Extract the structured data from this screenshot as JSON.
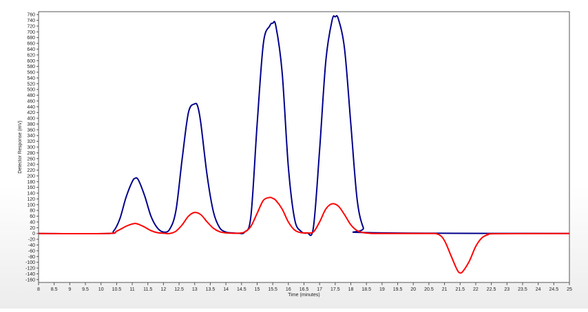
{
  "chart_data": {
    "type": "line",
    "title": "",
    "xlabel": "Time (minutes)",
    "ylabel": "Detector Response (mV)",
    "xlim": [
      8,
      25
    ],
    "ylim": [
      -170,
      770
    ],
    "x_ticks": [
      "8",
      "8.5",
      "9",
      "9.5",
      "10",
      "10.5",
      "11",
      "11.5",
      "12",
      "12.5",
      "13",
      "13.5",
      "14",
      "14.5",
      "15",
      "15.5",
      "16",
      "16.5",
      "17",
      "17.5",
      "18",
      "18.5",
      "19",
      "19.5",
      "20",
      "20.5",
      "21",
      "21.5",
      "22",
      "22.5",
      "23",
      "23.5",
      "24",
      "24.5",
      "25"
    ],
    "y_ticks": [
      "760",
      "740",
      "720",
      "700",
      "680",
      "660",
      "640",
      "620",
      "600",
      "580",
      "560",
      "540",
      "520",
      "500",
      "480",
      "460",
      "440",
      "420",
      "400",
      "380",
      "360",
      "340",
      "320",
      "300",
      "280",
      "260",
      "240",
      "220",
      "200",
      "180",
      "160",
      "140",
      "120",
      "100",
      "80",
      "60",
      "40",
      "20",
      "0",
      "-20",
      "-40",
      "-60",
      "-80",
      "-100",
      "-120",
      "-140",
      "-160"
    ],
    "grid": false,
    "legend": "none",
    "series": [
      {
        "color": "#00008b",
        "x": [
          8,
          10.2,
          10.4,
          10.6,
          10.8,
          11,
          11.1,
          11.2,
          11.4,
          11.6,
          11.8,
          12,
          12.2,
          12.4,
          12.6,
          12.8,
          13,
          13.1,
          13.2,
          13.4,
          13.6,
          13.8,
          14,
          14.2,
          14.4,
          14.6,
          14.8,
          15,
          15.2,
          15.4,
          15.5,
          15.6,
          15.8,
          16,
          16.2,
          16.4,
          16.6,
          16.8,
          17,
          17.2,
          17.4,
          17.5,
          17.6,
          17.8,
          18,
          18.2,
          18.4,
          18.6,
          25
        ],
        "y": [
          0,
          0,
          8,
          50,
          125,
          180,
          192,
          185,
          130,
          60,
          20,
          5,
          15,
          80,
          260,
          420,
          450,
          440,
          380,
          200,
          75,
          20,
          5,
          2,
          1,
          5,
          60,
          380,
          660,
          720,
          730,
          720,
          560,
          230,
          50,
          8,
          2,
          20,
          290,
          600,
          740,
          752,
          745,
          640,
          380,
          120,
          20,
          3,
          0
        ]
      },
      {
        "color": "#ff0000",
        "x": [
          8,
          10.2,
          10.5,
          10.8,
          11,
          11.1,
          11.2,
          11.4,
          11.6,
          11.8,
          12,
          12.2,
          12.4,
          12.6,
          12.8,
          13,
          13.2,
          13.4,
          13.6,
          13.8,
          14,
          14.2,
          14.4,
          14.6,
          14.8,
          15,
          15.2,
          15.4,
          15.5,
          15.6,
          15.8,
          16,
          16.2,
          16.4,
          16.6,
          16.8,
          17,
          17.2,
          17.4,
          17.6,
          17.8,
          18,
          18.2,
          18.4,
          18.6,
          18.8,
          20.4,
          20.8,
          21,
          21.2,
          21.4,
          21.5,
          21.6,
          21.8,
          22,
          22.2,
          22.4,
          22.6,
          25
        ],
        "y": [
          0,
          0,
          8,
          25,
          33,
          35,
          32,
          22,
          10,
          3,
          1,
          0,
          8,
          30,
          60,
          73,
          65,
          40,
          18,
          6,
          2,
          1,
          1,
          5,
          25,
          70,
          115,
          125,
          122,
          115,
          85,
          40,
          12,
          3,
          2,
          5,
          40,
          85,
          103,
          95,
          65,
          30,
          10,
          3,
          1,
          0,
          0,
          -3,
          -25,
          -75,
          -125,
          -137,
          -130,
          -95,
          -45,
          -15,
          -4,
          -1,
          0
        ]
      }
    ]
  }
}
